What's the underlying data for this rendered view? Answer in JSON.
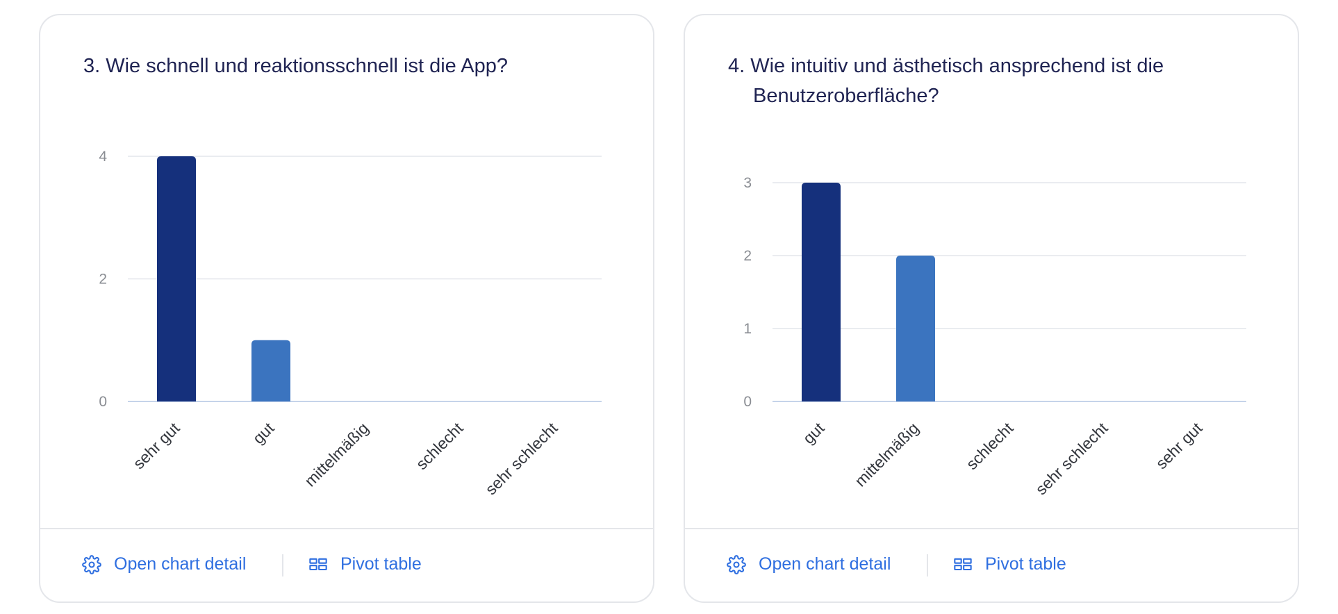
{
  "colors": {
    "bar_primary": "#15307c",
    "bar_secondary": "#3b74bf",
    "grid": "#e3e6ec",
    "baseline": "#c5d3ea",
    "link": "#2f6fe0",
    "title": "#1f2352"
  },
  "footer": {
    "detail_label": "Open chart detail",
    "detail_icon": "gear-icon",
    "pivot_label": "Pivot table",
    "pivot_icon": "pivot-table-icon"
  },
  "chart_data": [
    {
      "type": "bar",
      "title": "3. Wie schnell und reaktionsschnell ist die App?",
      "categories": [
        "sehr gut",
        "gut",
        "mittelmäßig",
        "schlecht",
        "sehr schlecht"
      ],
      "values": [
        4,
        1,
        0,
        0,
        0
      ],
      "yticks": [
        "0",
        "2",
        "4"
      ],
      "ylim": [
        0,
        4
      ],
      "xlabel": "",
      "ylabel": "",
      "grid": true,
      "legend": "none"
    },
    {
      "type": "bar",
      "title": "4. Wie intuitiv und ästhetisch ansprechend ist die Benutzeroberfläche?",
      "categories": [
        "gut",
        "mittelmäßig",
        "schlecht",
        "sehr schlecht",
        "sehr gut"
      ],
      "values": [
        3,
        2,
        0,
        0,
        0
      ],
      "yticks": [
        "0",
        "1",
        "2",
        "3"
      ],
      "ylim": [
        0,
        3
      ],
      "xlabel": "",
      "ylabel": "",
      "grid": true,
      "legend": "none"
    }
  ]
}
